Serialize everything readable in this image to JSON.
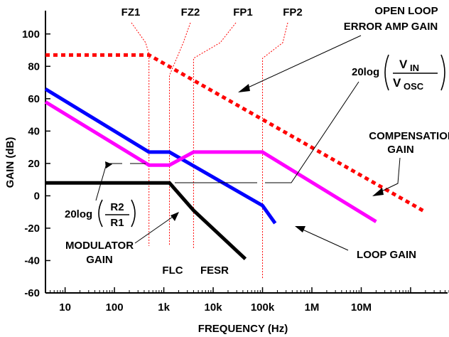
{
  "chart_data": {
    "type": "line",
    "xlabel": "FREQUENCY (Hz)",
    "ylabel": "GAIN (dB)",
    "x_scale": "log",
    "xlim": [
      4,
      600000000
    ],
    "ylim": [
      -60,
      110
    ],
    "x_ticks": [
      10,
      100,
      1000,
      10000,
      100000,
      1000000,
      10000000
    ],
    "x_tick_labels": [
      "10",
      "100",
      "1k",
      "10k",
      "100k",
      "1M",
      "10M"
    ],
    "y_ticks": [
      -60,
      -40,
      -20,
      0,
      20,
      40,
      60,
      80,
      100
    ],
    "y_tick_labels": [
      "-60",
      "-40",
      "-20",
      "0",
      "20",
      "40",
      "60",
      "80",
      "100"
    ],
    "grid": false,
    "series": [
      {
        "name": "OPEN LOOP ERROR AMP GAIN",
        "color": "#ff0000",
        "style": "dotted",
        "x": [
          4,
          500,
          200000000
        ],
        "y": [
          87,
          87,
          -10
        ]
      },
      {
        "name": "LOOP GAIN",
        "color": "#0000ff",
        "style": "solid",
        "x": [
          4,
          500,
          1300,
          100000,
          180000
        ],
        "y": [
          66,
          27,
          27,
          -6,
          -17
        ]
      },
      {
        "name": "COMPENSATION GAIN",
        "color": "#ff00ff",
        "style": "solid",
        "x": [
          4,
          500,
          1300,
          4000,
          100000,
          20000000
        ],
        "y": [
          58,
          19,
          19,
          27,
          27,
          -16
        ]
      },
      {
        "name": "MODULATOR GAIN",
        "color": "#000000",
        "style": "solid",
        "x": [
          4,
          1300,
          4000,
          45000
        ],
        "y": [
          8,
          8,
          -9,
          -39
        ]
      }
    ],
    "markers": [
      {
        "label": "FZ1",
        "x": 500
      },
      {
        "label": "FZ2",
        "x": 1300
      },
      {
        "label": "FP1",
        "x": 4000
      },
      {
        "label": "FP2",
        "x": 100000
      },
      {
        "label": "FLC",
        "x": 1300
      },
      {
        "label": "FESR",
        "x": 4000
      }
    ],
    "annotations": {
      "open_loop": [
        "OPEN LOOP",
        "ERROR AMP GAIN"
      ],
      "compensation": [
        "COMPENSATION",
        "GAIN"
      ],
      "modulator": [
        "MODULATOR",
        "GAIN"
      ],
      "loop_gain": "LOOP GAIN",
      "vin_formula": {
        "prefix": "20log",
        "numerator": "V",
        "numerator_sub": "IN",
        "denominator": "V",
        "denominator_sub": "OSC"
      },
      "r_formula": {
        "prefix": "20log",
        "numerator": "R2",
        "denominator": "R1"
      }
    }
  }
}
